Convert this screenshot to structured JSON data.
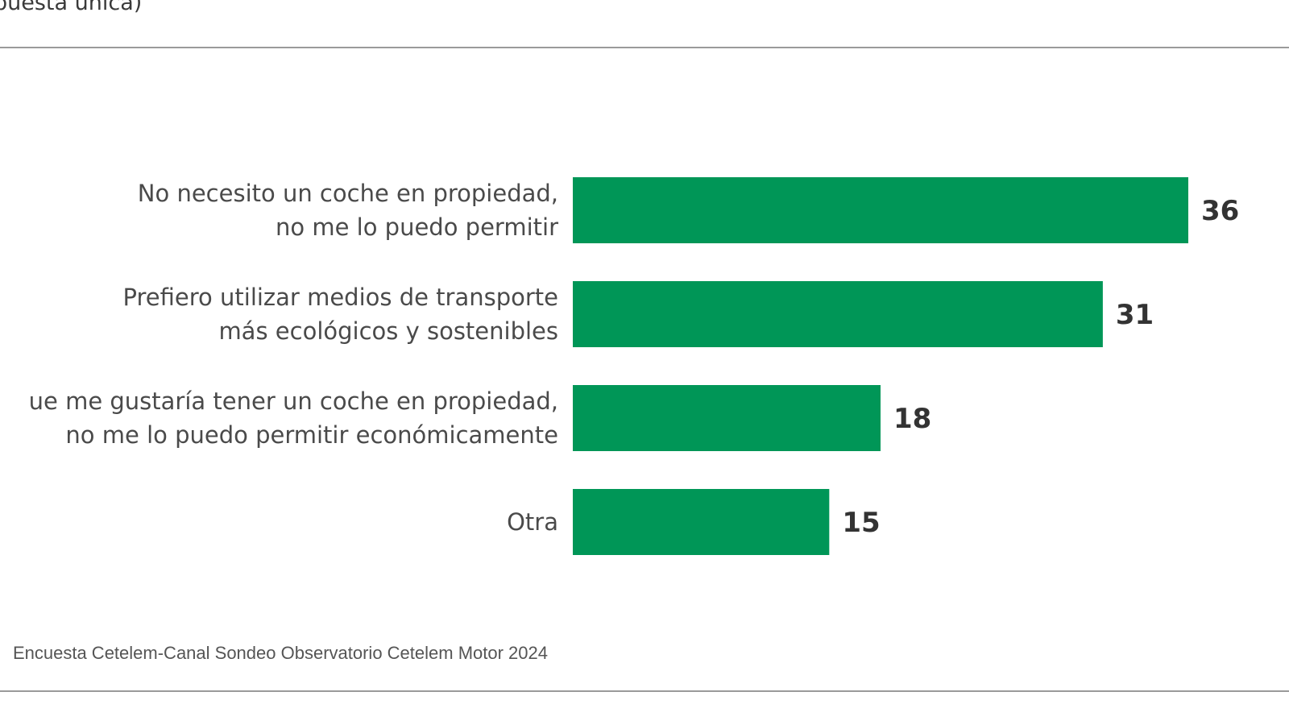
{
  "header": {
    "subtitle": "puesta única)"
  },
  "footer": {
    "source": "Encuesta Cetelem-Canal Sondeo Observatorio Cetelem Motor 2024"
  },
  "colors": {
    "bar": "#009657",
    "rule": "#9a9a9a"
  },
  "chart_data": {
    "type": "bar",
    "orientation": "horizontal",
    "categories": [
      [
        "No necesito un coche en propiedad,",
        "no me lo puedo permitir"
      ],
      [
        "Prefiero utilizar medios de transporte",
        "más ecológicos y sostenibles"
      ],
      [
        "ue me gustaría tener un coche en propiedad,",
        "no me lo puedo permitir económicamente"
      ],
      [
        "Otra"
      ]
    ],
    "values": [
      36,
      31,
      18,
      15
    ],
    "value_labels": [
      "36",
      "31",
      "18",
      "15"
    ],
    "xlim": [
      0,
      36
    ],
    "grid": false,
    "legend": "none"
  }
}
